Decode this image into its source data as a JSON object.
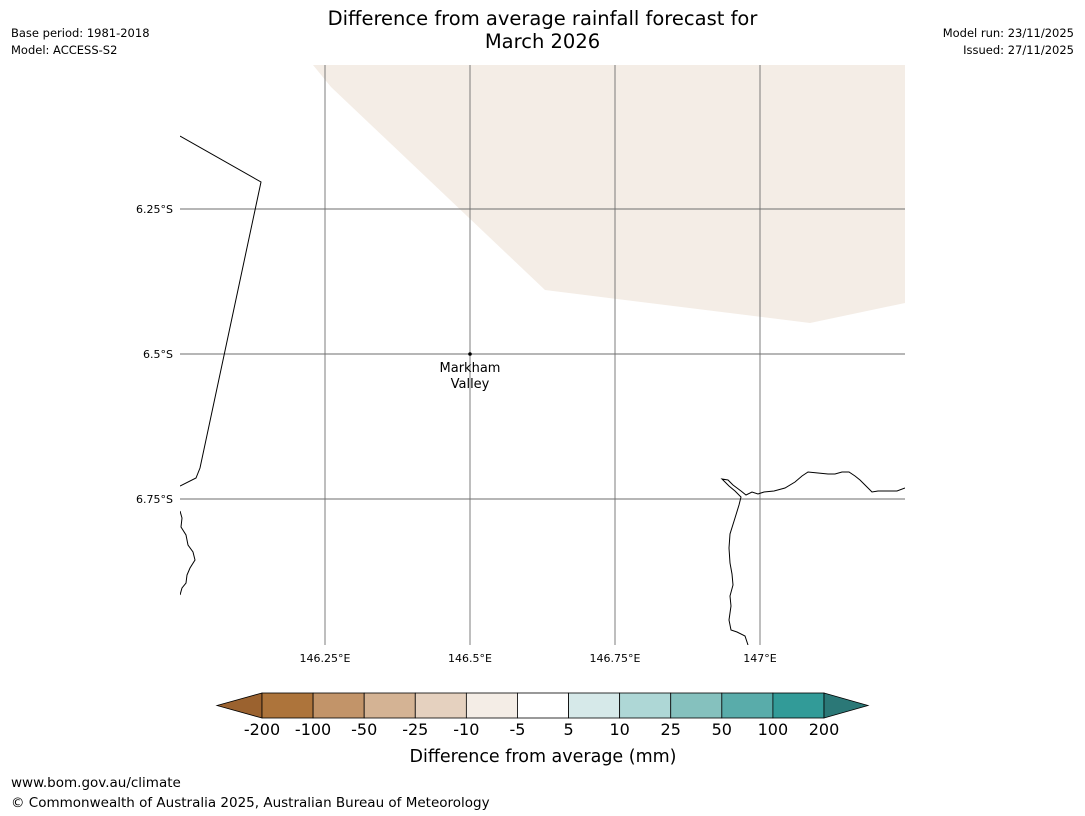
{
  "header": {
    "title_line1": "Difference from average rainfall forecast for",
    "title_line2": "March 2026",
    "base_period": "Base period: 1981-2018",
    "model": "Model: ACCESS-S2",
    "model_run": "Model run: 23/11/2025",
    "issued": "Issued: 27/11/2025"
  },
  "map": {
    "latitude_labels": [
      "6.25°S",
      "6.5°S",
      "6.75°S"
    ],
    "longitude_labels": [
      "146.25°E",
      "146.5°E",
      "146.75°E",
      "147°E"
    ],
    "place": {
      "name_line1": "Markham",
      "name_line2": "Valley"
    },
    "shaded_category": "-10 to -5",
    "shaded_color": "#f4ede6"
  },
  "colorbar": {
    "ticks": [
      "-200",
      "-100",
      "-50",
      "-25",
      "-10",
      "-5",
      "5",
      "10",
      "25",
      "50",
      "100",
      "200"
    ],
    "colors": [
      "#9b622f",
      "#ad743b",
      "#c29469",
      "#d4b394",
      "#e5d1bf",
      "#f4ede6",
      "#ffffff",
      "#d6e9e9",
      "#aed7d6",
      "#85c1be",
      "#59acaa",
      "#329b98",
      "#2b7877"
    ],
    "label": "Difference from average (mm)"
  },
  "footer": {
    "url": "www.bom.gov.au/climate",
    "copyright": "© Commonwealth of Australia 2025, Australian Bureau of Meteorology"
  }
}
